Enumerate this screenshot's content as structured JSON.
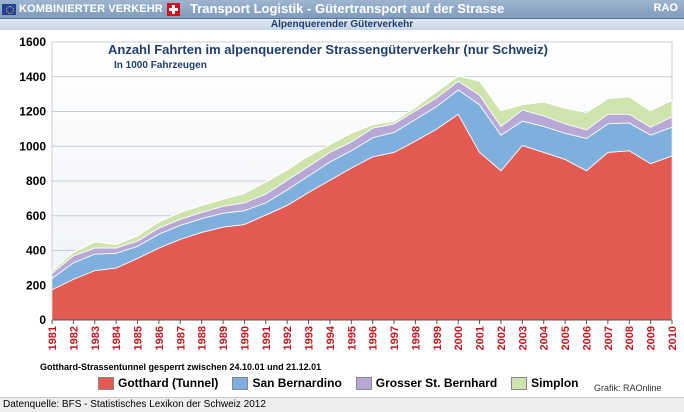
{
  "header": {
    "brand": "KOMBINIERTER VERKEHR",
    "title": "Transport Logistik - Gütertransport auf der Strasse",
    "rao": "RAO",
    "subtitle": "Alpenquerender Güterverkehr"
  },
  "footer": {
    "source": "Datenquelle: BFS - Statistisches Lexikon der Schweiz 2012",
    "credit": "Grafik: RAOnline"
  },
  "note": "Gotthard-Strassentunnel gesperrt zwischen 24.10.01 und 21.12.01",
  "colors": {
    "gotthard": "#e35a52",
    "san_bernardino": "#7fb0dd",
    "gr_st_bernhard": "#b7a8d6",
    "simplon": "#cfe3ad"
  },
  "chart_data": {
    "type": "area",
    "stacked": true,
    "title": "Anzahl Fahrten im alpenquerender Strassengüterverkehr (nur Schweiz)",
    "subtitle": "In 1000 Fahrzeugen",
    "xlabel": "",
    "ylabel": "",
    "ylim": [
      0,
      1600
    ],
    "yticks": [
      0,
      200,
      400,
      600,
      800,
      1000,
      1200,
      1400,
      1600
    ],
    "grid": true,
    "legend_position": "bottom",
    "x": [
      "1981",
      "1982",
      "1983",
      "1984",
      "1985",
      "1986",
      "1987",
      "1988",
      "1989",
      "1990",
      "1991",
      "1992",
      "1993",
      "1994",
      "1995",
      "1996",
      "1997",
      "1998",
      "1999",
      "2000",
      "2001",
      "2002",
      "2003",
      "2004",
      "2005",
      "2006",
      "2007",
      "2008",
      "2009",
      "2010"
    ],
    "series": [
      {
        "name": "Gotthard (Tunnel)",
        "color": "#e35a52",
        "values": [
          175,
          235,
          285,
          300,
          355,
          415,
          465,
          505,
          535,
          550,
          605,
          660,
          735,
          805,
          875,
          940,
          965,
          1030,
          1100,
          1185,
          965,
          860,
          1005,
          965,
          925,
          860,
          965,
          975,
          900,
          945
        ]
      },
      {
        "name": "San Bernardino",
        "color": "#7fb0dd",
        "values": [
          65,
          95,
          95,
          85,
          70,
          80,
          80,
          80,
          80,
          80,
          70,
          90,
          95,
          105,
          100,
          110,
          115,
          125,
          130,
          140,
          275,
          205,
          140,
          150,
          150,
          185,
          165,
          160,
          165,
          165
        ]
      },
      {
        "name": "Grosser St. Bernhard",
        "color": "#b7a8d6",
        "values": [
          30,
          40,
          35,
          30,
          30,
          35,
          35,
          35,
          40,
          45,
          50,
          55,
          55,
          55,
          50,
          55,
          50,
          50,
          50,
          50,
          55,
          50,
          65,
          60,
          55,
          50,
          55,
          50,
          45,
          60
        ]
      },
      {
        "name": "Simplon",
        "color": "#cfe3ad",
        "values": [
          15,
          20,
          35,
          20,
          30,
          35,
          40,
          40,
          40,
          55,
          70,
          60,
          60,
          45,
          50,
          20,
          15,
          20,
          35,
          30,
          80,
          90,
          30,
          80,
          90,
          100,
          90,
          100,
          95,
          95
        ]
      }
    ]
  }
}
